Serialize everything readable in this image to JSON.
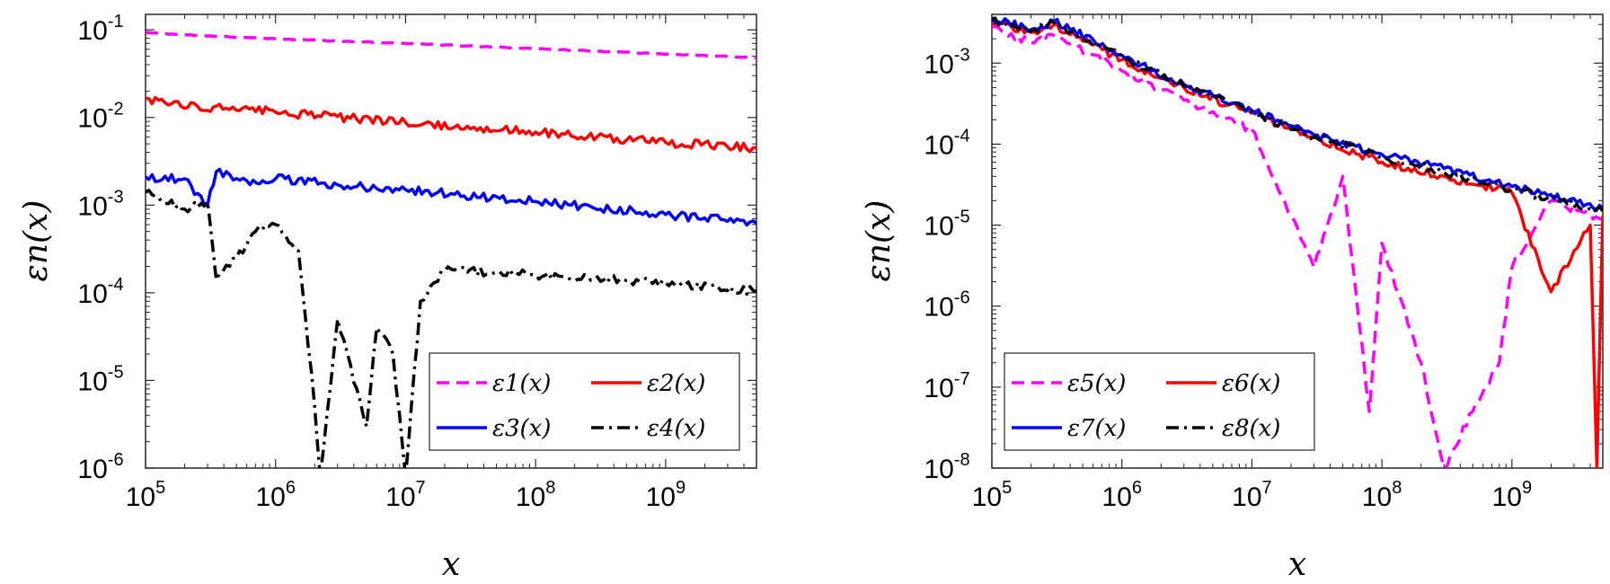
{
  "chart_data": [
    {
      "type": "line",
      "xscale": "log",
      "yscale": "log",
      "xlim": [
        100000,
        5000000000
      ],
      "ylim": [
        1e-06,
        0.15
      ],
      "xticks": [
        100000,
        1000000,
        10000000,
        100000000,
        1000000000
      ],
      "xtick_labels": [
        {
          "base": "10",
          "exp": "5"
        },
        {
          "base": "10",
          "exp": "6"
        },
        {
          "base": "10",
          "exp": "7"
        },
        {
          "base": "10",
          "exp": "8"
        },
        {
          "base": "10",
          "exp": "9"
        }
      ],
      "yticks": [
        0.1,
        0.01,
        0.001,
        0.0001,
        1e-05,
        1e-06
      ],
      "ytick_labels": [
        {
          "base": "10",
          "exp": "-1"
        },
        {
          "base": "10",
          "exp": "-2"
        },
        {
          "base": "10",
          "exp": "-3"
        },
        {
          "base": "10",
          "exp": "-4"
        },
        {
          "base": "10",
          "exp": "-5"
        },
        {
          "base": "10",
          "exp": "-6"
        }
      ],
      "xlabel": "x",
      "ylabel": "εn(x)",
      "legend": "bottom-right",
      "series": [
        {
          "name": "ε1(x)",
          "color": "#ff00ff",
          "dash": "dashed",
          "x": [
            100000,
            300000,
            1000000,
            10000000,
            100000000,
            1000000000,
            5000000000
          ],
          "y": [
            0.093,
            0.085,
            0.079,
            0.07,
            0.061,
            0.053,
            0.048
          ]
        },
        {
          "name": "ε2(x)",
          "color": "#ff0000",
          "dash": "solid",
          "x": [
            100000,
            250000,
            300000,
            350000,
            1000000,
            10000000,
            100000000,
            1000000000,
            5000000000
          ],
          "y": [
            0.0165,
            0.0135,
            0.012,
            0.0135,
            0.0115,
            0.0088,
            0.0068,
            0.0052,
            0.0045
          ]
        },
        {
          "name": "ε3(x)",
          "color": "#0000ff",
          "dash": "solid",
          "x": [
            100000,
            200000,
            300000,
            350000,
            600000,
            1000000,
            3000000,
            10000000,
            100000000,
            1000000000,
            5000000000
          ],
          "y": [
            0.0021,
            0.002,
            0.001,
            0.0024,
            0.0019,
            0.002,
            0.0017,
            0.0015,
            0.0011,
            0.00078,
            0.00062
          ]
        },
        {
          "name": "ε4(x)",
          "color": "#000000",
          "dash": "dashdot",
          "x": [
            100000,
            200000,
            300000,
            350000,
            500000,
            700000,
            1000000,
            1500000,
            2000000,
            2200000,
            3000000,
            5000000,
            6000000,
            8000000,
            10000000,
            13000000,
            20000000,
            50000000,
            100000000,
            1000000000,
            5000000000
          ],
          "y": [
            0.0014,
            0.0009,
            0.0011,
            0.00014,
            0.00025,
            0.0005,
            0.0006,
            0.0003,
            5e-06,
            8e-07,
            5e-05,
            3e-06,
            4e-05,
            2e-05,
            8e-07,
            8e-05,
            0.00018,
            0.00017,
            0.00016,
            0.00013,
            0.000105
          ]
        }
      ]
    },
    {
      "type": "line",
      "xscale": "log",
      "yscale": "log",
      "xlim": [
        100000,
        5000000000
      ],
      "ylim": [
        1e-08,
        0.004
      ],
      "xticks": [
        100000,
        1000000,
        10000000,
        100000000,
        1000000000
      ],
      "xtick_labels": [
        {
          "base": "10",
          "exp": "5"
        },
        {
          "base": "10",
          "exp": "6"
        },
        {
          "base": "10",
          "exp": "7"
        },
        {
          "base": "10",
          "exp": "8"
        },
        {
          "base": "10",
          "exp": "9"
        }
      ],
      "yticks": [
        0.001,
        0.0001,
        1e-05,
        1e-06,
        1e-07,
        1e-08
      ],
      "ytick_labels": [
        {
          "base": "10",
          "exp": "-3"
        },
        {
          "base": "10",
          "exp": "-4"
        },
        {
          "base": "10",
          "exp": "-5"
        },
        {
          "base": "10",
          "exp": "-6"
        },
        {
          "base": "10",
          "exp": "-7"
        },
        {
          "base": "10",
          "exp": "-8"
        }
      ],
      "xlabel": "x",
      "ylabel": "εn(x)",
      "legend": "bottom-right",
      "series": [
        {
          "name": "ε5(x)",
          "color": "#ff00ff",
          "dash": "dashed",
          "x": [
            100000,
            200000,
            300000,
            1000000,
            3000000,
            10000000,
            30000000,
            50000000,
            80000000,
            100000000,
            200000000,
            300000000,
            500000000,
            800000000,
            1000000000,
            2000000000,
            5000000000
          ],
          "y": [
            0.0028,
            0.0018,
            0.0022,
            0.0008,
            0.00035,
            0.00015,
            3e-06,
            4e-05,
            5e-08,
            6e-06,
            2e-07,
            1e-08,
            5e-08,
            2e-07,
            3e-06,
            2e-05,
            1.2e-05
          ]
        },
        {
          "name": "ε6(x)",
          "color": "#ff0000",
          "dash": "solid",
          "x": [
            100000,
            200000,
            300000,
            1000000,
            3000000,
            10000000,
            30000000,
            100000000,
            300000000,
            1000000000,
            2000000000,
            4000000000,
            4500000000,
            5000000000
          ],
          "y": [
            0.0032,
            0.0024,
            0.003,
            0.0011,
            0.0005,
            0.00024,
            0.00012,
            6e-05,
            4e-05,
            2.5e-05,
            1.5e-06,
            1e-05,
            1e-08,
            1.3e-05
          ]
        },
        {
          "name": "ε7(x)",
          "color": "#0000ff",
          "dash": "solid",
          "x": [
            100000,
            200000,
            300000,
            1000000,
            3000000,
            10000000,
            30000000,
            100000000,
            300000000,
            1000000000,
            5000000000
          ],
          "y": [
            0.0036,
            0.0026,
            0.0033,
            0.00125,
            0.00055,
            0.00026,
            0.00013,
            7.5e-05,
            5e-05,
            3e-05,
            1.6e-05
          ]
        },
        {
          "name": "ε8(x)",
          "color": "#000000",
          "dash": "dashdot",
          "x": [
            100000,
            200000,
            300000,
            1000000,
            3000000,
            10000000,
            30000000,
            100000000,
            300000000,
            1000000000,
            5000000000
          ],
          "y": [
            0.0035,
            0.0025,
            0.0032,
            0.0012,
            0.00052,
            0.00025,
            0.000125,
            7e-05,
            4.5e-05,
            2.8e-05,
            1.5e-05
          ]
        }
      ]
    }
  ]
}
